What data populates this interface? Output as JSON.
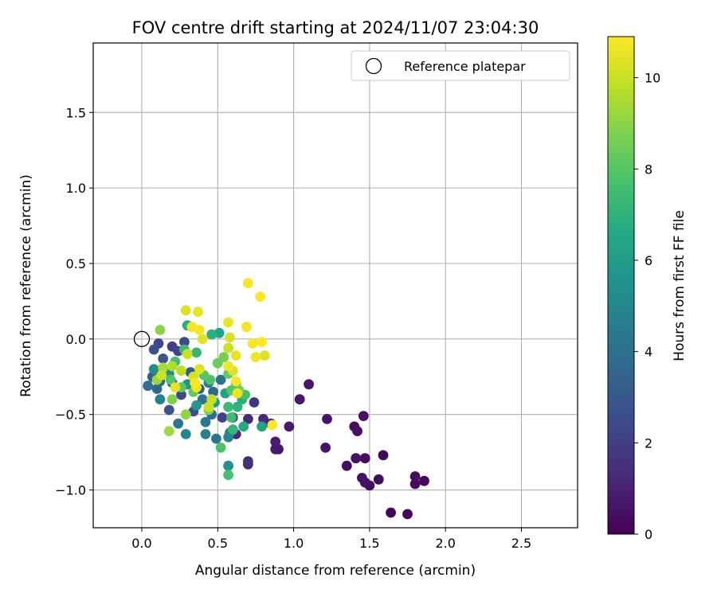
{
  "chart_data": {
    "type": "scatter",
    "title": "FOV centre drift starting at 2024/11/07 23:04:30",
    "xlabel": "Angular distance from reference (arcmin)",
    "ylabel": "Rotation from reference (arcmin)",
    "xlim": [
      -0.32,
      2.87
    ],
    "ylim": [
      -1.25,
      1.96
    ],
    "xticks": [
      0.0,
      0.5,
      1.0,
      1.5,
      2.0,
      2.5
    ],
    "xtick_labels": [
      "0.0",
      "0.5",
      "1.0",
      "1.5",
      "2.0",
      "2.5"
    ],
    "yticks": [
      -1.0,
      -0.5,
      0.0,
      0.5,
      1.0,
      1.5
    ],
    "ytick_labels": [
      "−1.0",
      "−0.5",
      "0.0",
      "0.5",
      "1.0",
      "1.5"
    ],
    "grid": true,
    "legend": {
      "label": "Reference platepar",
      "position": "top-right"
    },
    "reference_point": {
      "x": 0.0,
      "y": 0.0
    },
    "colorbar": {
      "label": "Hours from first FF file",
      "min": 0,
      "max": 10.9,
      "ticks": [
        0,
        2,
        4,
        6,
        8,
        10
      ],
      "tick_labels": [
        "0",
        "2",
        "4",
        "6",
        "8",
        "10"
      ],
      "colormap": "viridis"
    },
    "points": [
      [
        1.75,
        -1.16,
        0.1
      ],
      [
        1.64,
        -1.15,
        0.2
      ],
      [
        1.8,
        -0.96,
        0.3
      ],
      [
        1.86,
        -0.94,
        0.2
      ],
      [
        1.8,
        -0.91,
        0.4
      ],
      [
        1.5,
        -0.97,
        0.3
      ],
      [
        1.47,
        -0.95,
        0.5
      ],
      [
        1.56,
        -0.93,
        0.3
      ],
      [
        1.45,
        -0.92,
        0.6
      ],
      [
        1.35,
        -0.84,
        0.4
      ],
      [
        1.41,
        -0.79,
        0.5
      ],
      [
        1.47,
        -0.79,
        0.3
      ],
      [
        1.59,
        -0.77,
        0.2
      ],
      [
        1.21,
        -0.72,
        0.6
      ],
      [
        0.88,
        -0.73,
        0.8
      ],
      [
        0.9,
        -0.73,
        0.7
      ],
      [
        0.88,
        -0.68,
        0.9
      ],
      [
        1.42,
        -0.61,
        0.5
      ],
      [
        1.4,
        -0.58,
        0.4
      ],
      [
        0.97,
        -0.58,
        0.8
      ],
      [
        1.22,
        -0.53,
        0.6
      ],
      [
        1.46,
        -0.51,
        0.5
      ],
      [
        1.04,
        -0.4,
        0.7
      ],
      [
        1.1,
        -0.3,
        0.6
      ],
      [
        0.85,
        -0.56,
        1.0
      ],
      [
        0.8,
        -0.53,
        1.2
      ],
      [
        0.7,
        -0.53,
        1.3
      ],
      [
        0.62,
        -0.63,
        1.2
      ],
      [
        0.7,
        -0.81,
        1.5
      ],
      [
        0.7,
        -0.83,
        1.4
      ],
      [
        0.74,
        -0.42,
        1.6
      ],
      [
        0.6,
        -0.52,
        1.8
      ],
      [
        0.53,
        -0.52,
        2.0
      ],
      [
        0.24,
        -0.08,
        2.2
      ],
      [
        0.28,
        -0.02,
        2.5
      ],
      [
        0.2,
        -0.05,
        2.0
      ],
      [
        0.11,
        -0.03,
        2.3
      ],
      [
        0.08,
        -0.07,
        2.7
      ],
      [
        0.14,
        -0.13,
        2.9
      ],
      [
        0.07,
        -0.25,
        3.2
      ],
      [
        0.12,
        -0.28,
        3.5
      ],
      [
        0.16,
        -0.21,
        3.8
      ],
      [
        0.04,
        -0.31,
        4.0
      ],
      [
        0.1,
        -0.33,
        3.6
      ],
      [
        0.2,
        -0.29,
        3.0
      ],
      [
        0.18,
        -0.47,
        2.8
      ],
      [
        0.34,
        -0.48,
        2.6
      ],
      [
        0.26,
        -0.37,
        2.4
      ],
      [
        0.32,
        -0.22,
        3.1
      ],
      [
        0.38,
        -0.33,
        3.3
      ],
      [
        0.47,
        -0.35,
        3.7
      ],
      [
        0.52,
        -0.27,
        4.2
      ],
      [
        0.44,
        -0.29,
        4.5
      ],
      [
        0.4,
        -0.4,
        4.1
      ],
      [
        0.46,
        -0.5,
        3.9
      ],
      [
        0.42,
        -0.55,
        4.4
      ],
      [
        0.42,
        -0.63,
        4.8
      ],
      [
        0.49,
        -0.66,
        4.2
      ],
      [
        0.57,
        -0.65,
        5.0
      ],
      [
        0.58,
        -0.62,
        4.6
      ],
      [
        0.57,
        -0.84,
        5.5
      ],
      [
        0.24,
        -0.56,
        4.3
      ],
      [
        0.29,
        -0.63,
        4.9
      ],
      [
        0.12,
        -0.4,
        4.7
      ],
      [
        0.08,
        -0.2,
        5.2
      ],
      [
        0.18,
        -0.23,
        5.4
      ],
      [
        0.3,
        -0.3,
        5.6
      ],
      [
        0.36,
        -0.44,
        5.8
      ],
      [
        0.48,
        -0.42,
        6.0
      ],
      [
        0.55,
        -0.36,
        6.2
      ],
      [
        0.62,
        -0.29,
        6.5
      ],
      [
        0.66,
        -0.4,
        6.8
      ],
      [
        0.63,
        -0.45,
        7.0
      ],
      [
        0.67,
        -0.58,
        6.6
      ],
      [
        0.79,
        -0.58,
        6.3
      ],
      [
        0.57,
        -0.45,
        7.3
      ],
      [
        0.59,
        -0.52,
        7.5
      ],
      [
        0.6,
        -0.6,
        7.1
      ],
      [
        0.52,
        -0.72,
        7.8
      ],
      [
        0.57,
        -0.9,
        7.7
      ],
      [
        0.46,
        0.03,
        6.9
      ],
      [
        0.51,
        0.04,
        6.4
      ],
      [
        0.3,
        0.09,
        6.7
      ],
      [
        0.36,
        -0.09,
        7.2
      ],
      [
        0.28,
        -0.07,
        7.4
      ],
      [
        0.22,
        -0.15,
        7.6
      ],
      [
        0.19,
        -0.27,
        7.9
      ],
      [
        0.26,
        -0.32,
        8.1
      ],
      [
        0.34,
        -0.35,
        8.3
      ],
      [
        0.41,
        -0.24,
        8.0
      ],
      [
        0.45,
        -0.27,
        7.8
      ],
      [
        0.5,
        -0.16,
        8.4
      ],
      [
        0.54,
        -0.12,
        8.6
      ],
      [
        0.57,
        -0.23,
        8.2
      ],
      [
        0.59,
        -0.34,
        8.0
      ],
      [
        0.64,
        -0.34,
        8.5
      ],
      [
        0.68,
        -0.37,
        7.6
      ],
      [
        0.44,
        -0.47,
        8.7
      ],
      [
        0.2,
        -0.4,
        8.8
      ],
      [
        0.29,
        -0.5,
        9.1
      ],
      [
        0.18,
        -0.61,
        9.3
      ],
      [
        0.12,
        0.06,
        9.0
      ],
      [
        0.1,
        -0.27,
        9.2
      ],
      [
        0.14,
        -0.19,
        9.4
      ],
      [
        0.2,
        -0.18,
        9.6
      ],
      [
        0.26,
        -0.21,
        9.8
      ],
      [
        0.3,
        -0.1,
        10.0
      ],
      [
        0.34,
        -0.25,
        10.2
      ],
      [
        0.38,
        -0.2,
        10.4
      ],
      [
        0.36,
        -0.32,
        10.6
      ],
      [
        0.44,
        -0.45,
        10.1
      ],
      [
        0.46,
        -0.4,
        9.9
      ],
      [
        0.29,
        0.19,
        10.3
      ],
      [
        0.37,
        0.18,
        10.5
      ],
      [
        0.33,
        0.08,
        10.7
      ],
      [
        0.38,
        0.06,
        10.8
      ],
      [
        0.4,
        0.0,
        10.4
      ],
      [
        0.57,
        0.11,
        10.6
      ],
      [
        0.58,
        0.01,
        10.2
      ],
      [
        0.57,
        -0.06,
        10.0
      ],
      [
        0.62,
        -0.11,
        10.5
      ],
      [
        0.69,
        0.08,
        10.7
      ],
      [
        0.73,
        -0.03,
        10.8
      ],
      [
        0.75,
        -0.12,
        10.6
      ],
      [
        0.79,
        -0.02,
        10.9
      ],
      [
        0.81,
        -0.11,
        10.4
      ],
      [
        0.7,
        0.37,
        10.8
      ],
      [
        0.78,
        0.28,
        10.9
      ],
      [
        0.57,
        -0.18,
        10.7
      ],
      [
        0.6,
        -0.21,
        10.3
      ],
      [
        0.62,
        -0.28,
        10.8
      ],
      [
        0.63,
        -0.36,
        10.6
      ],
      [
        0.86,
        -0.57,
        10.9
      ],
      [
        0.35,
        -0.29,
        10.9
      ],
      [
        0.22,
        -0.32,
        10.5
      ],
      [
        0.13,
        -0.24,
        10.1
      ]
    ]
  }
}
